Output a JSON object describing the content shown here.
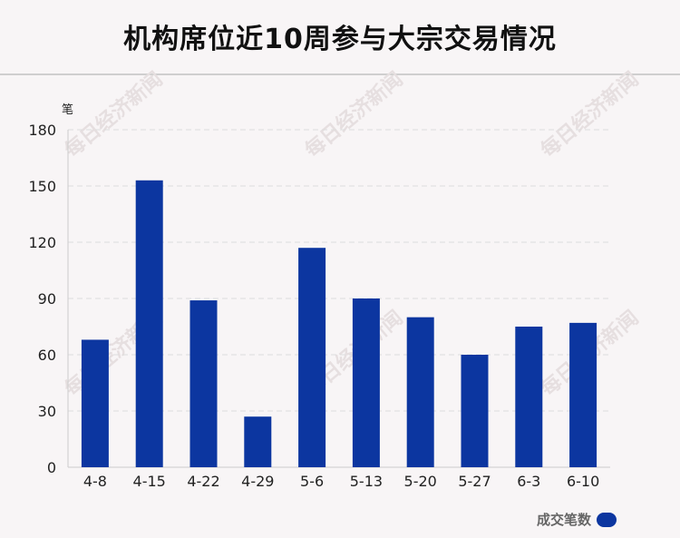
{
  "title": "机构席位近10周参与大宗交易情况",
  "watermark": "每日经济新闻",
  "colors": {
    "bar": "#0c36a0",
    "grid": "#dddddd",
    "axis": "#cccccc",
    "text": "#222222",
    "watermark": "#e6dfe0"
  },
  "chart_data": {
    "type": "bar",
    "title": "机构席位近10周参与大宗交易情况",
    "ylabel": "笔",
    "xlabel": "",
    "categories": [
      "4-8",
      "4-15",
      "4-22",
      "4-29",
      "5-6",
      "5-13",
      "5-20",
      "5-27",
      "6-3",
      "6-10"
    ],
    "series": [
      {
        "name": "成交笔数",
        "values": [
          68,
          153,
          89,
          27,
          117,
          90,
          80,
          60,
          75,
          77
        ]
      }
    ],
    "ylim": [
      0,
      180
    ],
    "yticks": [
      0,
      30,
      60,
      90,
      120,
      150,
      180
    ],
    "grid": true,
    "legend": "bottom-right"
  }
}
